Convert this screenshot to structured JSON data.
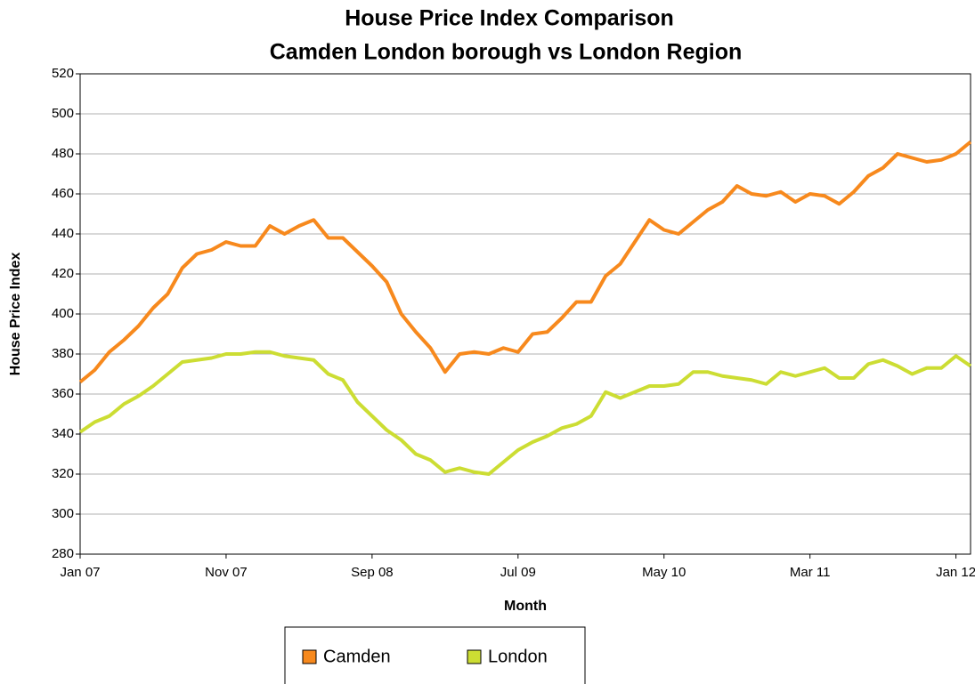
{
  "chart_data": {
    "type": "line",
    "title": "House Price Index Comparison",
    "subtitle": "Camden London borough vs London Region",
    "x_label": "Month",
    "y_label": "House Price Index",
    "categories": [
      "Jan 07",
      null,
      null,
      null,
      null,
      null,
      null,
      null,
      null,
      null,
      "Nov 07",
      null,
      null,
      null,
      null,
      null,
      null,
      null,
      null,
      null,
      "Sep 08",
      null,
      null,
      null,
      null,
      null,
      null,
      null,
      null,
      null,
      "Jul 09",
      null,
      null,
      null,
      null,
      null,
      null,
      null,
      null,
      null,
      "May 10",
      null,
      null,
      null,
      null,
      null,
      null,
      null,
      null,
      null,
      "Mar 11",
      null,
      null,
      null,
      null,
      null,
      null,
      null,
      null,
      null,
      "Jan 12",
      null
    ],
    "series": [
      {
        "name": "Camden",
        "color": "#f7891d",
        "values": [
          366,
          372,
          381,
          387,
          394,
          403,
          410,
          423,
          430,
          432,
          436,
          434,
          434,
          444,
          440,
          444,
          447,
          438,
          438,
          431,
          424,
          416,
          400,
          391,
          383,
          371,
          380,
          381,
          380,
          383,
          381,
          390,
          391,
          398,
          406,
          406,
          419,
          425,
          436,
          447,
          442,
          440,
          446,
          452,
          456,
          464,
          460,
          459,
          461,
          456,
          460,
          459,
          455,
          461,
          469,
          473,
          480,
          478,
          476,
          477,
          480,
          486
        ]
      },
      {
        "name": "London",
        "color": "#ccdd33",
        "values": [
          341,
          346,
          349,
          355,
          359,
          364,
          370,
          376,
          377,
          378,
          380,
          380,
          381,
          381,
          379,
          378,
          377,
          370,
          367,
          356,
          349,
          342,
          337,
          330,
          327,
          321,
          323,
          321,
          320,
          326,
          332,
          336,
          339,
          343,
          345,
          349,
          361,
          358,
          361,
          364,
          364,
          365,
          371,
          371,
          369,
          368,
          367,
          365,
          371,
          369,
          371,
          373,
          368,
          368,
          375,
          377,
          374,
          370,
          373,
          373,
          379,
          374
        ]
      }
    ],
    "ylim": [
      280,
      520
    ],
    "yticks": [
      280,
      300,
      320,
      340,
      360,
      380,
      400,
      420,
      440,
      460,
      480,
      500,
      520
    ],
    "grid": true
  }
}
